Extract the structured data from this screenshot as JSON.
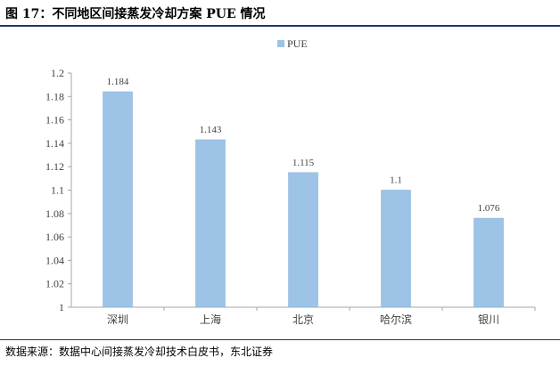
{
  "figure_title": "图 17：不同地区间接蒸发冷却方案 PUE 情况",
  "source_note": "数据来源：数据中心间接蒸发冷却技术白皮书，东北证券",
  "colors": {
    "bar": "#9dc3e6",
    "bar_stroke": "#8fb5da",
    "axis": "#a6a6a6",
    "rule": "#1f3864"
  },
  "chart_data": {
    "type": "bar",
    "categories": [
      "深圳",
      "上海",
      "北京",
      "哈尔滨",
      "银川"
    ],
    "series": [
      {
        "name": "PUE",
        "values": [
          1.184,
          1.143,
          1.115,
          1.1,
          1.076
        ]
      }
    ],
    "data_labels": [
      "1.184",
      "1.143",
      "1.115",
      "1.1",
      "1.076"
    ],
    "yticks": [
      "1",
      "1.02",
      "1.04",
      "1.06",
      "1.08",
      "1.1",
      "1.12",
      "1.14",
      "1.16",
      "1.18",
      "1.2"
    ],
    "ylim": [
      1,
      1.2
    ],
    "grid": false,
    "legend": "top-center",
    "title": "",
    "xlabel": "",
    "ylabel": ""
  }
}
